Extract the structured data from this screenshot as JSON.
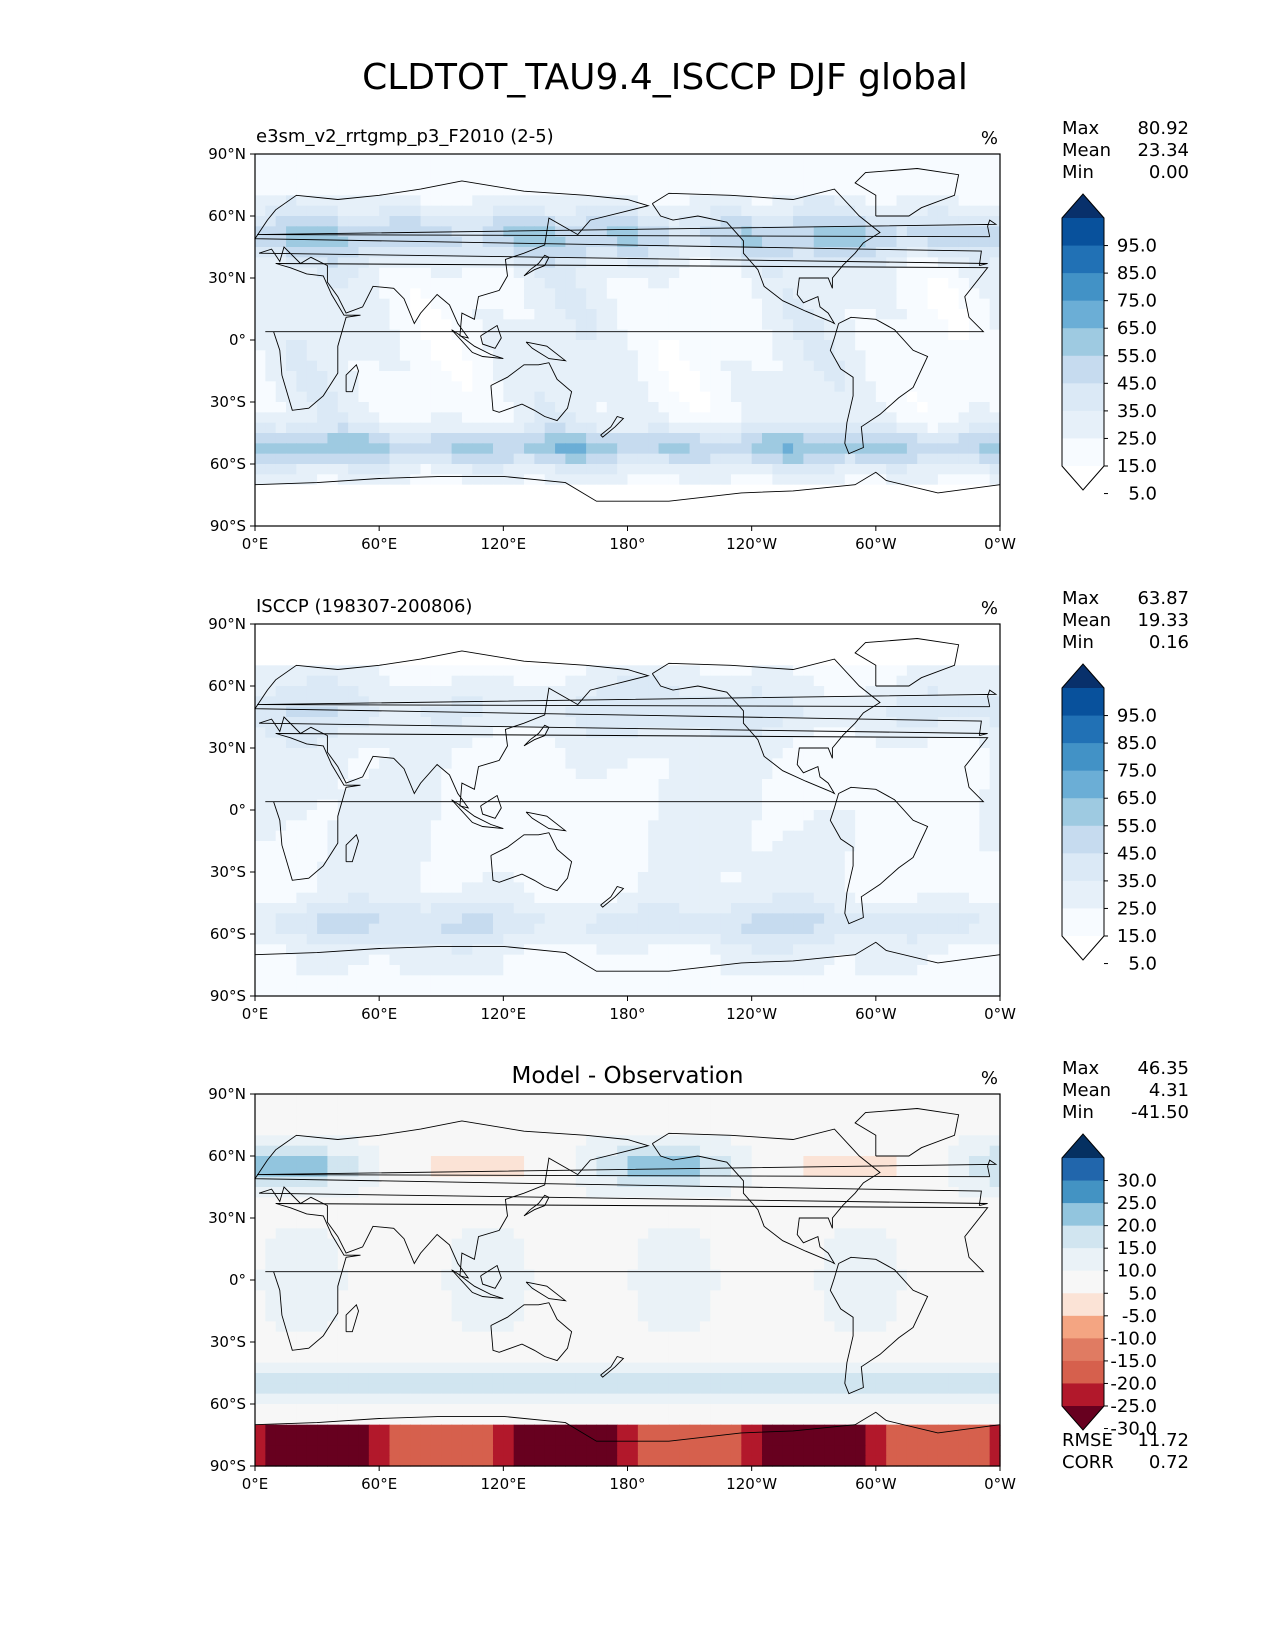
{
  "title": "CLDTOT_TAU9.4_ISCCP DJF global",
  "panels": [
    {
      "id": "model",
      "left_title": "e3sm_v2_rrtgmp_p3_F2010 (2-5)",
      "center_title": "",
      "units": "%",
      "stats": [
        {
          "label": "Max",
          "value": "80.92"
        },
        {
          "label": "Mean",
          "value": "23.34"
        },
        {
          "label": "Min",
          "value": "0.00"
        }
      ],
      "colorbar": {
        "labels": [
          "95.0",
          "85.0",
          "75.0",
          "65.0",
          "55.0",
          "45.0",
          "35.0",
          "25.0",
          "15.0",
          "5.0"
        ],
        "colors": [
          "#08306b",
          "#08519c",
          "#2171b5",
          "#4292c6",
          "#6baed6",
          "#9ecae1",
          "#c6dbef",
          "#dbe9f6",
          "#e6f0f9",
          "#f7fbff",
          "#ffffff"
        ],
        "extend": "both"
      },
      "extra_stats": []
    },
    {
      "id": "obs",
      "left_title": "ISCCP (198307-200806)",
      "center_title": "",
      "units": "%",
      "stats": [
        {
          "label": "Max",
          "value": "63.87"
        },
        {
          "label": "Mean",
          "value": "19.33"
        },
        {
          "label": "Min",
          "value": "0.16"
        }
      ],
      "colorbar": {
        "labels": [
          "95.0",
          "85.0",
          "75.0",
          "65.0",
          "55.0",
          "45.0",
          "35.0",
          "25.0",
          "15.0",
          "5.0"
        ],
        "colors": [
          "#08306b",
          "#08519c",
          "#2171b5",
          "#4292c6",
          "#6baed6",
          "#9ecae1",
          "#c6dbef",
          "#dbe9f6",
          "#e6f0f9",
          "#f7fbff",
          "#ffffff"
        ],
        "extend": "both"
      },
      "extra_stats": []
    },
    {
      "id": "diff",
      "left_title": "",
      "center_title": "Model - Observation",
      "units": "%",
      "stats": [
        {
          "label": "Max",
          "value": "46.35"
        },
        {
          "label": "Mean",
          "value": "4.31"
        },
        {
          "label": "Min",
          "value": "-41.50"
        }
      ],
      "colorbar": {
        "labels": [
          "30.0",
          "25.0",
          "20.0",
          "15.0",
          "10.0",
          "5.0",
          "-5.0",
          "-10.0",
          "-15.0",
          "-20.0",
          "-25.0",
          "-30.0"
        ],
        "colors": [
          "#053061",
          "#2166ac",
          "#4393c3",
          "#92c5de",
          "#d1e5f0",
          "#eaf2f7",
          "#f7f7f7",
          "#fbe3d6",
          "#f4a582",
          "#e07b62",
          "#d6604d",
          "#b2182b",
          "#67001f"
        ],
        "extend": "both"
      },
      "extra_stats": [
        {
          "label": "RMSE",
          "value": "11.72"
        },
        {
          "label": "CORR",
          "value": "0.72"
        }
      ]
    }
  ],
  "lat_ticks": [
    "90°N",
    "60°N",
    "30°N",
    "0°",
    "30°S",
    "60°S",
    "90°S"
  ],
  "lon_ticks": [
    "0°E",
    "60°E",
    "120°E",
    "180°",
    "120°W",
    "60°W",
    "0°W"
  ]
}
